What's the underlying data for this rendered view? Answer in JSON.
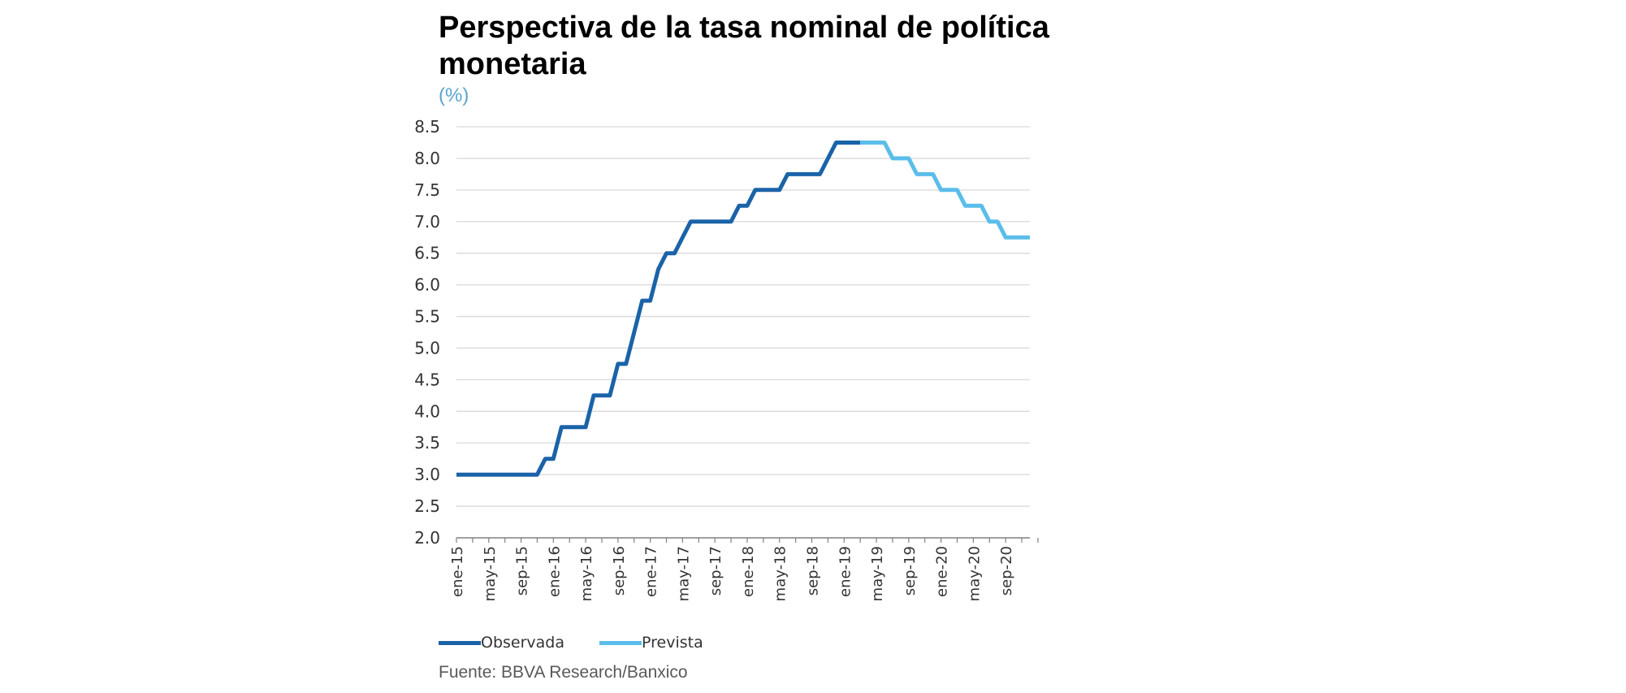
{
  "colors": {
    "observed": "#1a63a8",
    "forecast": "#5bbdea",
    "grid": "#d9d9d9",
    "axis": "#808080",
    "unit": "#5ba3d0"
  },
  "chart_data": {
    "type": "line",
    "title": "Perspectiva de la tasa nominal de política monetaria",
    "ylabel": "(%)",
    "ylim": [
      2.0,
      8.5
    ],
    "yticks": [
      "8.5",
      "8.0",
      "7.5",
      "7.0",
      "6.5",
      "6.0",
      "5.5",
      "5.0",
      "4.5",
      "4.0",
      "3.5",
      "3.0",
      "2.5",
      "2.0"
    ],
    "xticks": [
      "ene-15",
      "may-15",
      "sep-15",
      "ene-16",
      "may-16",
      "sep-16",
      "ene-17",
      "may-17",
      "sep-17",
      "ene-18",
      "may-18",
      "sep-18",
      "ene-19",
      "may-19",
      "sep-19",
      "ene-20",
      "may-20",
      "sep-20"
    ],
    "xlim": [
      "ene-15",
      "dic-20"
    ],
    "grid": true,
    "legend_position": "bottom",
    "series": [
      {
        "name": "Observada",
        "points": [
          [
            "ene-15",
            3.0
          ],
          [
            "ene-15",
            3.0
          ],
          [
            "nov-15",
            3.0
          ],
          [
            "dic-15",
            3.25
          ],
          [
            "ene-16",
            3.25
          ],
          [
            "feb-16",
            3.75
          ],
          [
            "may-16",
            3.75
          ],
          [
            "jun-16",
            4.25
          ],
          [
            "ago-16",
            4.25
          ],
          [
            "sep-16",
            4.75
          ],
          [
            "oct-16",
            4.75
          ],
          [
            "nov-16",
            5.25
          ],
          [
            "dic-16",
            5.75
          ],
          [
            "ene-17",
            5.75
          ],
          [
            "feb-17",
            6.25
          ],
          [
            "mar-17",
            6.5
          ],
          [
            "abr-17",
            6.5
          ],
          [
            "may-17",
            6.75
          ],
          [
            "jun-17",
            7.0
          ],
          [
            "nov-17",
            7.0
          ],
          [
            "dic-17",
            7.25
          ],
          [
            "ene-18",
            7.25
          ],
          [
            "feb-18",
            7.5
          ],
          [
            "may-18",
            7.5
          ],
          [
            "jun-18",
            7.75
          ],
          [
            "oct-18",
            7.75
          ],
          [
            "dic-18",
            8.25
          ],
          [
            "mar-19",
            8.25
          ]
        ]
      },
      {
        "name": "Prevista",
        "points": [
          [
            "mar-19",
            8.25
          ],
          [
            "jun-19",
            8.25
          ],
          [
            "jul-19",
            8.0
          ],
          [
            "ago-19",
            8.0
          ],
          [
            "sep-19",
            8.0
          ],
          [
            "oct-19",
            7.75
          ],
          [
            "dic-19",
            7.75
          ],
          [
            "ene-20",
            7.5
          ],
          [
            "mar-20",
            7.5
          ],
          [
            "abr-20",
            7.25
          ],
          [
            "jun-20",
            7.25
          ],
          [
            "jul-20",
            7.0
          ],
          [
            "ago-20",
            7.0
          ],
          [
            "sep-20",
            6.75
          ],
          [
            "dic-20",
            6.75
          ]
        ]
      }
    ]
  },
  "source": "Fuente: BBVA Research/Banxico"
}
